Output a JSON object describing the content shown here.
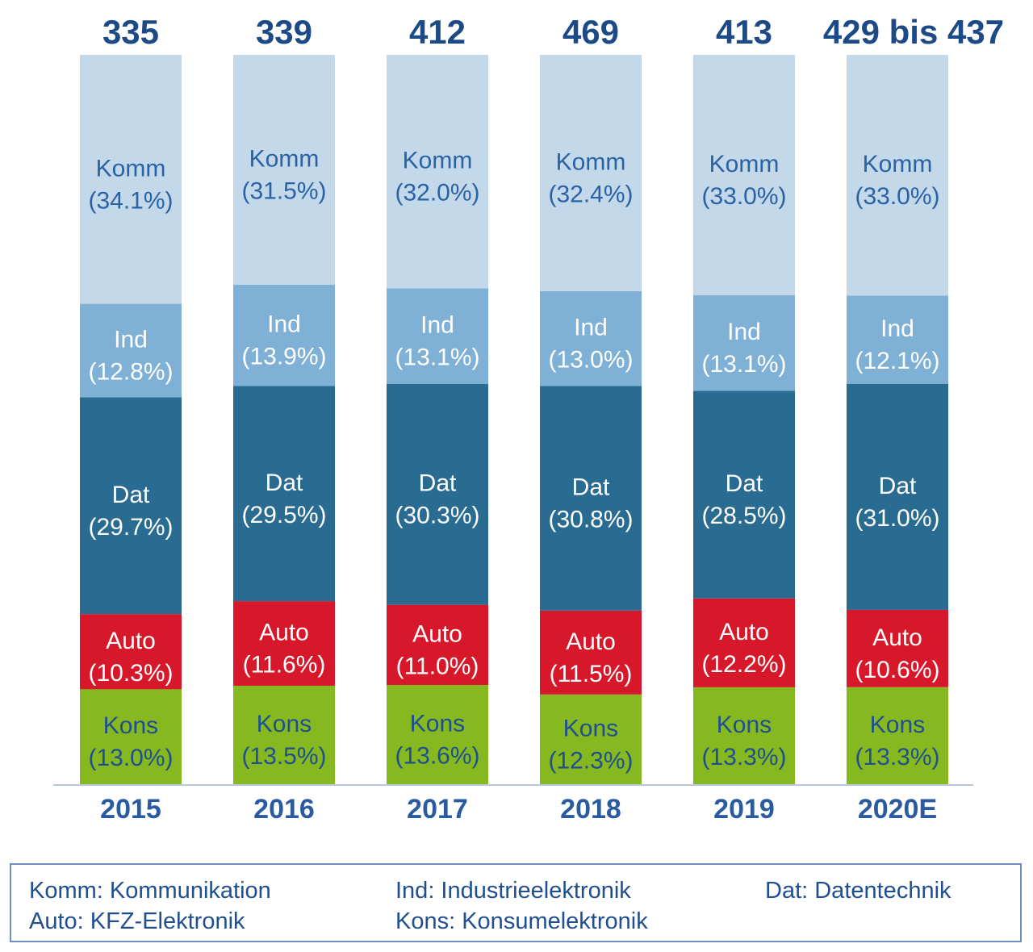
{
  "chart_data": {
    "type": "bar",
    "stacked": true,
    "normalized": true,
    "categories": [
      "2015",
      "2016",
      "2017",
      "2018",
      "2019",
      "2020E"
    ],
    "totals": [
      "335",
      "339",
      "412",
      "469",
      "413",
      "429 bis 437"
    ],
    "series": [
      {
        "name": "Kons",
        "color": "#86b820",
        "text_color": "#1f4f8f",
        "values": [
          13.0,
          13.5,
          13.6,
          12.3,
          13.3,
          13.3
        ],
        "labels": [
          "(13.0%)",
          "(13.5%)",
          "(13.6%)",
          "(12.3%)",
          "(13.3%)",
          "(13.3%)"
        ]
      },
      {
        "name": "Auto",
        "color": "#d7182a",
        "text_color": "#ffffff",
        "values": [
          10.3,
          11.6,
          11.0,
          11.5,
          12.2,
          10.6
        ],
        "labels": [
          "(10.3%)",
          "(11.6%)",
          "(11.0%)",
          "(11.5%)",
          "(12.2%)",
          "(10.6%)"
        ]
      },
      {
        "name": "Dat",
        "color": "#2a6c91",
        "text_color": "#ffffff",
        "values": [
          29.7,
          29.5,
          30.3,
          30.8,
          28.5,
          31.0
        ],
        "labels": [
          "(29.7%)",
          "(29.5%)",
          "(30.3%)",
          "(30.8%)",
          "(28.5%)",
          "(31.0%)"
        ]
      },
      {
        "name": "Ind",
        "color": "#7fb0d6",
        "text_color": "#ffffff",
        "values": [
          12.8,
          13.9,
          13.1,
          13.0,
          13.1,
          12.1
        ],
        "labels": [
          "(12.8%)",
          "(13.9%)",
          "(13.1%)",
          "(13.0%)",
          "(13.1%)",
          "(12.1%)"
        ]
      },
      {
        "name": "Komm",
        "color": "#c3d8e8",
        "text_color": "#2a62a6",
        "values": [
          34.1,
          31.5,
          32.0,
          32.4,
          33.0,
          33.0
        ],
        "labels": [
          "(34.1%)",
          "(31.5%)",
          "(32.0%)",
          "(32.4%)",
          "(33.0%)",
          "(33.0%)"
        ]
      }
    ],
    "title": "",
    "xlabel": "",
    "ylabel": "",
    "grid": false,
    "legend_position": "bottom"
  },
  "legend": {
    "komm": "Komm: Kommunikation",
    "ind": "Ind: Industrieelektronik",
    "dat": "Dat: Datentechnik",
    "auto": "Auto: KFZ-Elektronik",
    "kons": "Kons: Konsumelektronik"
  },
  "colors": {
    "axis": "#b8c6de",
    "total_text": "#1c4a86",
    "category_text": "#2a5aa0",
    "legend_border": "#6d8fc0"
  }
}
